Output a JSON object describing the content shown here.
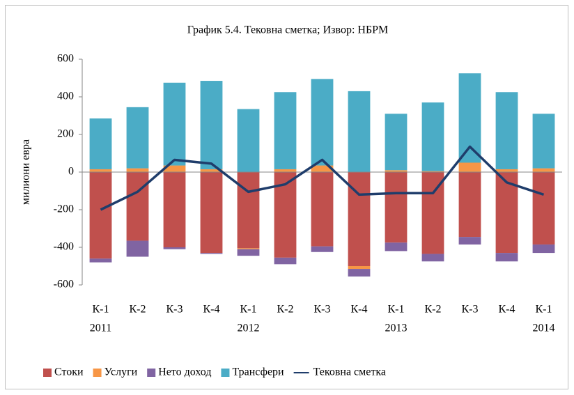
{
  "chart_data": {
    "type": "bar",
    "stacked": true,
    "title": "График 5.4. Тековна сметка; Извор: НБРМ",
    "y_label": "милиони евра",
    "categories": [
      "К-1",
      "К-2",
      "К-3",
      "К-4",
      "К-1",
      "К-2",
      "К-3",
      "К-4",
      "К-1",
      "К-2",
      "К-3",
      "К-4",
      "К-1"
    ],
    "category_years": [
      "2011",
      null,
      null,
      null,
      "2012",
      null,
      null,
      null,
      "2013",
      null,
      null,
      null,
      "2014"
    ],
    "ylim": [
      -600,
      600
    ],
    "yticks": [
      -600,
      -400,
      -200,
      0,
      200,
      400,
      600
    ],
    "legend": "bottom",
    "series": [
      {
        "name": "Стоки",
        "color": "#c0504d",
        "values": [
          -460,
          -365,
          -400,
          -430,
          -405,
          -455,
          -395,
          -500,
          -375,
          -435,
          -345,
          -430,
          -385
        ]
      },
      {
        "name": "Услуги",
        "color": "#f79646",
        "values": [
          15,
          20,
          35,
          15,
          -5,
          15,
          35,
          -15,
          10,
          5,
          50,
          15,
          20
        ]
      },
      {
        "name": "Нето доход",
        "color": "#8064a2",
        "values": [
          -20,
          -85,
          -10,
          -5,
          -35,
          -35,
          -30,
          -40,
          -45,
          -40,
          -40,
          -45,
          -45
        ]
      },
      {
        "name": "Трансфери",
        "color": "#4bacc6",
        "values": [
          270,
          325,
          440,
          470,
          335,
          410,
          460,
          430,
          300,
          365,
          475,
          410,
          290
        ]
      },
      {
        "name": "Тековна сметка",
        "color": "#1f3d6b",
        "type": "line",
        "values": [
          -200,
          -105,
          65,
          45,
          -105,
          -65,
          65,
          -120,
          -112,
          -112,
          135,
          -55,
          -120
        ]
      }
    ]
  }
}
